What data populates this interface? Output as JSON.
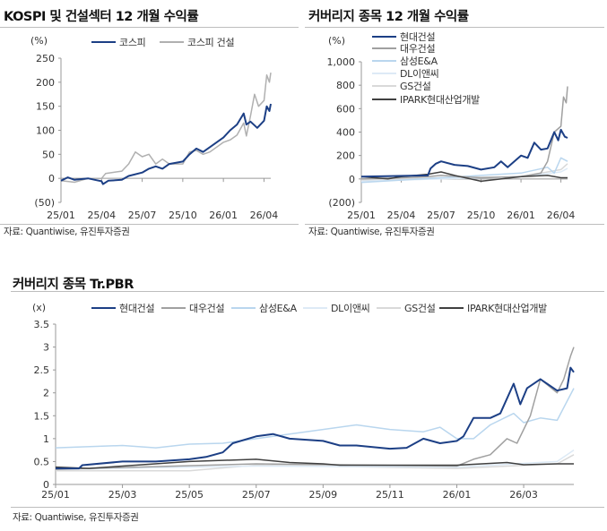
{
  "chart_data": [
    {
      "type": "line",
      "title": "KOSPI 및 건설섹터 12 개월 수익률",
      "ylabel": "(%)",
      "xlabel": "",
      "x_unit": "months since 25/01",
      "xlim": [
        0,
        15.5
      ],
      "ylim": [
        -50,
        250
      ],
      "x_ticks": [
        0,
        3,
        6,
        9,
        12,
        15
      ],
      "x_tick_labels": [
        "25/01",
        "25/04",
        "25/07",
        "25/10",
        "26/01",
        "26/04"
      ],
      "y_ticks": [
        250,
        200,
        150,
        100,
        50,
        0,
        -50
      ],
      "y_tick_labels": [
        "250",
        "200",
        "150",
        "100",
        "50",
        "0",
        "(50)"
      ],
      "legend_placement": "top",
      "source": "자료: Quantiwise, 유진투자증권",
      "series": [
        {
          "name": "코스피",
          "color": "#1c3f85",
          "width": 2,
          "points": [
            [
              0,
              -5
            ],
            [
              0.5,
              2
            ],
            [
              1,
              -3
            ],
            [
              2,
              0
            ],
            [
              2.5,
              -3
            ],
            [
              3,
              -6
            ],
            [
              3.1,
              -12
            ],
            [
              3.5,
              -5
            ],
            [
              4.5,
              -3
            ],
            [
              5,
              5
            ],
            [
              6,
              12
            ],
            [
              6.5,
              20
            ],
            [
              7,
              25
            ],
            [
              7.5,
              20
            ],
            [
              8,
              30
            ],
            [
              9,
              35
            ],
            [
              9.5,
              50
            ],
            [
              10,
              62
            ],
            [
              10.5,
              55
            ],
            [
              11,
              65
            ],
            [
              12,
              85
            ],
            [
              12.5,
              100
            ],
            [
              13,
              112
            ],
            [
              13.5,
              135
            ],
            [
              13.7,
              112
            ],
            [
              14,
              118
            ],
            [
              14.5,
              105
            ],
            [
              15,
              120
            ],
            [
              15.2,
              150
            ],
            [
              15.4,
              140
            ],
            [
              15.5,
              155
            ]
          ]
        },
        {
          "name": "코스피 건설",
          "color": "#b0b0b0",
          "width": 1.5,
          "points": [
            [
              0,
              -5
            ],
            [
              1,
              -8
            ],
            [
              2,
              0
            ],
            [
              3,
              0
            ],
            [
              3.3,
              10
            ],
            [
              4.5,
              15
            ],
            [
              5,
              30
            ],
            [
              5.5,
              55
            ],
            [
              6,
              45
            ],
            [
              6.5,
              50
            ],
            [
              7,
              30
            ],
            [
              7.5,
              40
            ],
            [
              8,
              30
            ],
            [
              9,
              30
            ],
            [
              9.5,
              55
            ],
            [
              10,
              58
            ],
            [
              10.5,
              50
            ],
            [
              11,
              55
            ],
            [
              12,
              75
            ],
            [
              12.5,
              80
            ],
            [
              13,
              90
            ],
            [
              13.5,
              115
            ],
            [
              13.7,
              88
            ],
            [
              14,
              130
            ],
            [
              14.3,
              175
            ],
            [
              14.6,
              150
            ],
            [
              15,
              162
            ],
            [
              15.2,
              215
            ],
            [
              15.4,
              200
            ],
            [
              15.5,
              220
            ]
          ]
        }
      ]
    },
    {
      "type": "line",
      "title": "커버리지 종목 12 개월 수익률",
      "ylabel": "(%)",
      "xlabel": "",
      "x_unit": "months since 25/01",
      "xlim": [
        0,
        15.5
      ],
      "ylim": [
        -200,
        1000
      ],
      "x_ticks": [
        0,
        3,
        6,
        9,
        12,
        15
      ],
      "x_tick_labels": [
        "25/01",
        "25/04",
        "25/07",
        "25/10",
        "26/01",
        "26/04"
      ],
      "y_ticks": [
        1000,
        800,
        600,
        400,
        200,
        0,
        -200
      ],
      "y_tick_labels": [
        "1,000",
        "800",
        "600",
        "400",
        "200",
        "0",
        "(200)"
      ],
      "legend_placement": "top-left",
      "source": "자료: Quantiwise, 유진투자증권",
      "series": [
        {
          "name": "현대건설",
          "color": "#1c3f85",
          "width": 2,
          "points": [
            [
              0,
              20
            ],
            [
              5,
              30
            ],
            [
              5.2,
              90
            ],
            [
              5.6,
              130
            ],
            [
              6,
              150
            ],
            [
              7,
              120
            ],
            [
              8,
              110
            ],
            [
              9,
              80
            ],
            [
              10,
              100
            ],
            [
              10.5,
              150
            ],
            [
              11,
              100
            ],
            [
              12,
              200
            ],
            [
              12.5,
              180
            ],
            [
              13,
              310
            ],
            [
              13.5,
              250
            ],
            [
              14,
              260
            ],
            [
              14.5,
              400
            ],
            [
              14.8,
              330
            ],
            [
              15,
              420
            ],
            [
              15.3,
              360
            ],
            [
              15.5,
              350
            ]
          ]
        },
        {
          "name": "대우건설",
          "color": "#a0a0a0",
          "width": 1.5,
          "points": [
            [
              0,
              0
            ],
            [
              3,
              10
            ],
            [
              5,
              20
            ],
            [
              6,
              30
            ],
            [
              9,
              10
            ],
            [
              12,
              20
            ],
            [
              13.5,
              50
            ],
            [
              14,
              150
            ],
            [
              14.5,
              400
            ],
            [
              15,
              450
            ],
            [
              15.2,
              700
            ],
            [
              15.4,
              650
            ],
            [
              15.5,
              790
            ]
          ]
        },
        {
          "name": "삼성E&A",
          "color": "#b9d6ee",
          "width": 1.5,
          "points": [
            [
              0,
              -30
            ],
            [
              3,
              -10
            ],
            [
              6,
              10
            ],
            [
              9,
              30
            ],
            [
              12,
              50
            ],
            [
              14,
              100
            ],
            [
              14.5,
              50
            ],
            [
              15,
              180
            ],
            [
              15.5,
              150
            ]
          ]
        },
        {
          "name": "DL이앤씨",
          "color": "#ddeaf6",
          "width": 1.5,
          "points": [
            [
              0,
              -20
            ],
            [
              6,
              0
            ],
            [
              12,
              20
            ],
            [
              15,
              60
            ],
            [
              15.5,
              90
            ]
          ]
        },
        {
          "name": "GS건설",
          "color": "#d9d9d9",
          "width": 1.5,
          "points": [
            [
              0,
              -10
            ],
            [
              6,
              10
            ],
            [
              12,
              20
            ],
            [
              15,
              80
            ],
            [
              15.5,
              130
            ]
          ]
        },
        {
          "name": "IPARK현대산업개발",
          "color": "#404040",
          "width": 1.5,
          "points": [
            [
              0,
              20
            ],
            [
              2,
              0
            ],
            [
              3,
              20
            ],
            [
              5,
              40
            ],
            [
              6,
              60
            ],
            [
              7,
              30
            ],
            [
              9,
              -20
            ],
            [
              12,
              20
            ],
            [
              14,
              30
            ],
            [
              15,
              10
            ],
            [
              15.5,
              10
            ]
          ]
        }
      ]
    },
    {
      "type": "line",
      "title": "커버리지 종목 Tr.PBR",
      "ylabel": "(x)",
      "xlabel": "",
      "x_unit": "months since 25/01",
      "xlim": [
        0,
        15.5
      ],
      "ylim": [
        0,
        3.5
      ],
      "x_ticks": [
        0,
        2,
        4,
        6,
        8,
        10,
        12,
        14
      ],
      "x_tick_labels": [
        "25/01",
        "25/03",
        "25/05",
        "25/07",
        "25/09",
        "25/11",
        "26/01",
        "26/03"
      ],
      "y_ticks": [
        3.5,
        3,
        2.5,
        2,
        1.5,
        1,
        0.5,
        0
      ],
      "y_tick_labels": [
        "3.5",
        "3",
        "2.5",
        "2",
        "1.5",
        "1",
        "0.5",
        "0"
      ],
      "legend_placement": "top",
      "source": "자료: Quantiwise, 유진투자증권",
      "series": [
        {
          "name": "현대건설",
          "color": "#1c3f85",
          "width": 2,
          "points": [
            [
              0,
              0.35
            ],
            [
              0.7,
              0.35
            ],
            [
              0.8,
              0.42
            ],
            [
              2,
              0.5
            ],
            [
              3,
              0.5
            ],
            [
              4,
              0.55
            ],
            [
              4.5,
              0.6
            ],
            [
              5,
              0.7
            ],
            [
              5.3,
              0.9
            ],
            [
              6,
              1.05
            ],
            [
              6.5,
              1.1
            ],
            [
              7,
              1.0
            ],
            [
              8,
              0.95
            ],
            [
              8.5,
              0.85
            ],
            [
              9,
              0.85
            ],
            [
              10,
              0.78
            ],
            [
              10.5,
              0.8
            ],
            [
              11,
              1.0
            ],
            [
              11.5,
              0.9
            ],
            [
              12,
              0.95
            ],
            [
              12.2,
              1.05
            ],
            [
              12.5,
              1.45
            ],
            [
              13,
              1.45
            ],
            [
              13.3,
              1.55
            ],
            [
              13.7,
              2.2
            ],
            [
              13.9,
              1.75
            ],
            [
              14.1,
              2.1
            ],
            [
              14.5,
              2.3
            ],
            [
              15,
              2.05
            ],
            [
              15.3,
              2.1
            ],
            [
              15.4,
              2.55
            ],
            [
              15.5,
              2.45
            ]
          ]
        },
        {
          "name": "대우건설",
          "color": "#a0a0a0",
          "width": 1.5,
          "points": [
            [
              0,
              0.33
            ],
            [
              6,
              0.45
            ],
            [
              12,
              0.4
            ],
            [
              12.5,
              0.55
            ],
            [
              13,
              0.65
            ],
            [
              13.5,
              1.0
            ],
            [
              13.8,
              0.9
            ],
            [
              14.2,
              1.5
            ],
            [
              14.5,
              2.3
            ],
            [
              15,
              2.0
            ],
            [
              15.2,
              2.3
            ],
            [
              15.4,
              2.8
            ],
            [
              15.5,
              3.0
            ]
          ]
        },
        {
          "name": "삼성E&A",
          "color": "#b9d6ee",
          "width": 1.5,
          "points": [
            [
              0,
              0.8
            ],
            [
              2,
              0.85
            ],
            [
              3,
              0.8
            ],
            [
              4,
              0.88
            ],
            [
              5,
              0.9
            ],
            [
              6,
              1.0
            ],
            [
              7,
              1.1
            ],
            [
              8,
              1.2
            ],
            [
              9,
              1.3
            ],
            [
              10,
              1.2
            ],
            [
              11,
              1.15
            ],
            [
              11.5,
              1.25
            ],
            [
              12,
              1.0
            ],
            [
              12.5,
              1.0
            ],
            [
              13,
              1.3
            ],
            [
              13.7,
              1.55
            ],
            [
              14,
              1.35
            ],
            [
              14.5,
              1.45
            ],
            [
              15,
              1.4
            ],
            [
              15.5,
              2.1
            ]
          ]
        },
        {
          "name": "DL이앤씨",
          "color": "#ddeaf6",
          "width": 1.5,
          "points": [
            [
              0,
              0.33
            ],
            [
              6,
              0.4
            ],
            [
              12,
              0.38
            ],
            [
              15,
              0.5
            ],
            [
              15.5,
              0.75
            ]
          ]
        },
        {
          "name": "GS건설",
          "color": "#d9d9d9",
          "width": 1.5,
          "points": [
            [
              0,
              0.3
            ],
            [
              4,
              0.3
            ],
            [
              6,
              0.42
            ],
            [
              12,
              0.35
            ],
            [
              15,
              0.45
            ],
            [
              15.5,
              0.65
            ]
          ]
        },
        {
          "name": "IPARK현대산업개발",
          "color": "#404040",
          "width": 1.5,
          "points": [
            [
              0,
              0.38
            ],
            [
              1,
              0.35
            ],
            [
              2,
              0.4
            ],
            [
              4,
              0.5
            ],
            [
              6,
              0.55
            ],
            [
              7,
              0.48
            ],
            [
              8,
              0.45
            ],
            [
              8.5,
              0.42
            ],
            [
              12,
              0.42
            ],
            [
              13.5,
              0.48
            ],
            [
              14,
              0.43
            ],
            [
              15,
              0.45
            ],
            [
              15.5,
              0.45
            ]
          ]
        }
      ]
    }
  ]
}
